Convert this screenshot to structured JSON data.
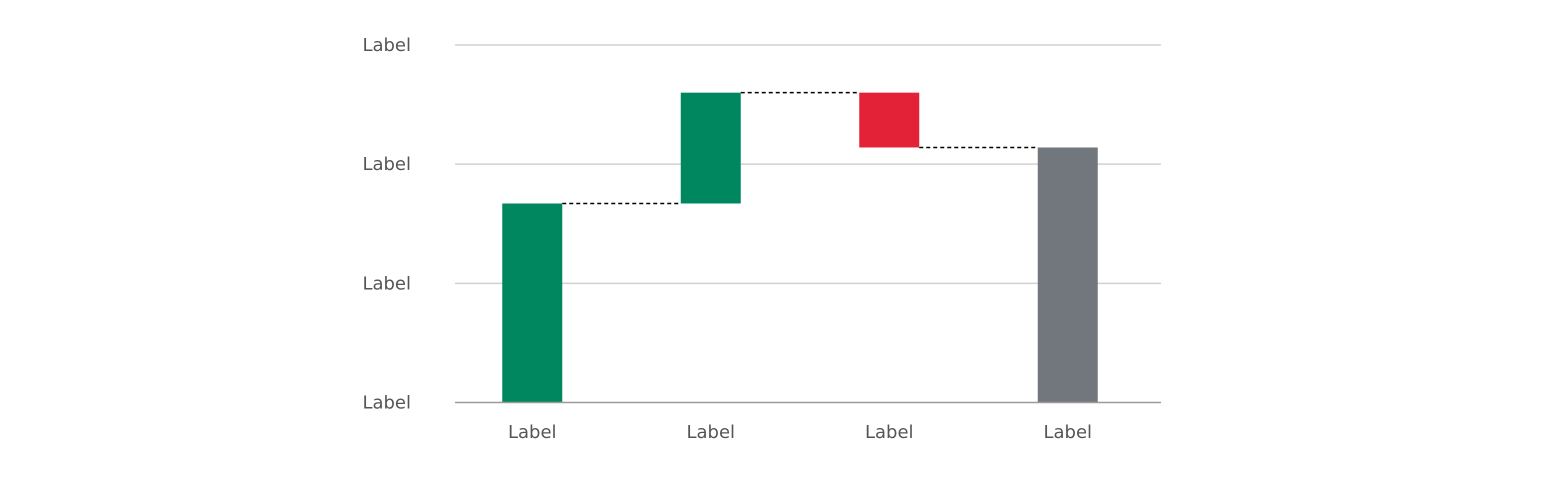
{
  "chart_data": {
    "type": "waterfall",
    "title": "",
    "xlabel": "",
    "ylabel": "",
    "ylim": [
      0,
      3
    ],
    "y_ticks": [
      0,
      1,
      2,
      3
    ],
    "y_tick_labels": [
      "Label",
      "Label",
      "Label",
      "Label"
    ],
    "grid": true,
    "categories": [
      "Label",
      "Label",
      "Label",
      "Label"
    ],
    "steps": [
      {
        "kind": "start",
        "value": 1.67
      },
      {
        "kind": "increase",
        "value": 0.93
      },
      {
        "kind": "decrease",
        "value": -0.46
      },
      {
        "kind": "total",
        "value": 2.14
      }
    ],
    "colors": {
      "increase": "#00875F",
      "decrease": "#E32237",
      "total": "#72767D",
      "grid": "#D0D0D0",
      "axis": "#9A9A9A",
      "connector": "#000000"
    }
  }
}
